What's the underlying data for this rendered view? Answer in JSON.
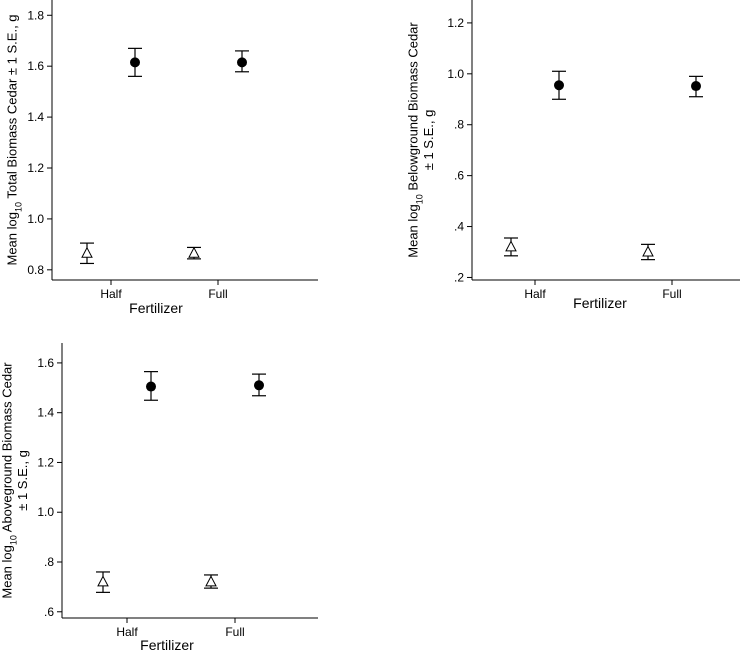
{
  "chart_data": [
    {
      "type": "scatter",
      "xlabel": "Fertilizer",
      "ylabel_lines": [
        "Mean log10 Total Biomass Cedar ± 1 S.E., g"
      ],
      "categories": [
        "Half",
        "Full"
      ],
      "ylim": [
        0.76,
        1.86
      ],
      "yticks": [
        "0.8",
        "1.0",
        "1.2",
        "1.4",
        "1.6",
        "1.8"
      ],
      "ytick_values": [
        0.8,
        1.0,
        1.2,
        1.4,
        1.6,
        1.8
      ],
      "series": [
        {
          "marker": "open-triangle",
          "values": [
            0.865,
            0.865
          ],
          "se_low": [
            0.825,
            0.843
          ],
          "se_high": [
            0.905,
            0.888
          ]
        },
        {
          "marker": "filled-circle",
          "values": [
            1.615,
            1.615
          ],
          "se_low": [
            1.56,
            1.578
          ],
          "se_high": [
            1.67,
            1.66
          ]
        }
      ]
    },
    {
      "type": "scatter",
      "xlabel": "Fertilizer",
      "ylabel_lines": [
        "Mean log10 Belowground Biomass Cedar",
        "± 1 S.E., g"
      ],
      "categories": [
        "Half",
        "Full"
      ],
      "ylim": [
        0.19,
        1.29
      ],
      "yticks": [
        ".2",
        ".4",
        ".6",
        ".8",
        "1.0",
        "1.2"
      ],
      "ytick_values": [
        0.2,
        0.4,
        0.6,
        0.8,
        1.0,
        1.2
      ],
      "series": [
        {
          "marker": "open-triangle",
          "values": [
            0.32,
            0.3
          ],
          "se_low": [
            0.285,
            0.27
          ],
          "se_high": [
            0.355,
            0.33
          ]
        },
        {
          "marker": "filled-circle",
          "values": [
            0.955,
            0.952
          ],
          "se_low": [
            0.9,
            0.91
          ],
          "se_high": [
            1.01,
            0.99
          ]
        }
      ]
    },
    {
      "type": "scatter",
      "xlabel": "Fertilizer",
      "ylabel_lines": [
        "Mean log10 Aboveground Biomass Cedar",
        "± 1 S.E., g"
      ],
      "categories": [
        "Half",
        "Full"
      ],
      "ylim": [
        0.575,
        1.68
      ],
      "yticks": [
        ".6",
        ".8",
        "1.0",
        "1.2",
        "1.4",
        "1.6"
      ],
      "ytick_values": [
        0.6,
        0.8,
        1.0,
        1.2,
        1.4,
        1.6
      ],
      "series": [
        {
          "marker": "open-triangle",
          "values": [
            0.72,
            0.72
          ],
          "se_low": [
            0.678,
            0.695
          ],
          "se_high": [
            0.76,
            0.748
          ]
        },
        {
          "marker": "filled-circle",
          "values": [
            1.505,
            1.51
          ],
          "se_low": [
            1.45,
            1.468
          ],
          "se_high": [
            1.565,
            1.555
          ]
        }
      ]
    }
  ]
}
